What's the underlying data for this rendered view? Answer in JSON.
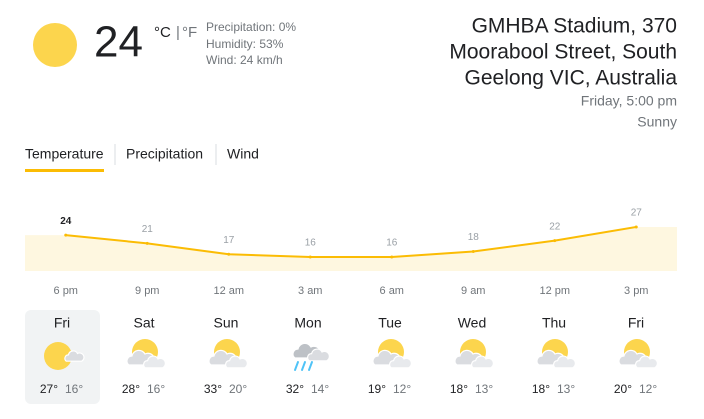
{
  "current": {
    "temperature": "24",
    "unit_c": "°C",
    "unit_sep": "|",
    "unit_f": "°F",
    "precipitation": "Precipitation: 0%",
    "humidity": "Humidity: 53%",
    "wind": "Wind: 24 km/h"
  },
  "location": {
    "lines": [
      "GMHBA Stadium, 370",
      "Moorabool Street, South",
      "Geelong VIC, Australia"
    ],
    "time": "Friday, 5:00 pm",
    "condition": "Sunny"
  },
  "tabs": [
    "Temperature",
    "Precipitation",
    "Wind"
  ],
  "chart_data": {
    "type": "area",
    "categories": [
      "6 pm",
      "9 pm",
      "12 am",
      "3 am",
      "6 am",
      "9 am",
      "12 pm",
      "3 pm"
    ],
    "values": [
      24,
      21,
      17,
      16,
      16,
      18,
      22,
      27
    ],
    "color": "#fbbc04",
    "fill": "#fef7e0"
  },
  "daily": [
    {
      "day": "Fri",
      "high": "27°",
      "low": "16°"
    },
    {
      "day": "Sat",
      "high": "28°",
      "low": "16°"
    },
    {
      "day": "Sun",
      "high": "33°",
      "low": "20°"
    },
    {
      "day": "Mon",
      "high": "32°",
      "low": "14°"
    },
    {
      "day": "Tue",
      "high": "19°",
      "low": "12°"
    },
    {
      "day": "Wed",
      "high": "18°",
      "low": "13°"
    },
    {
      "day": "Thu",
      "high": "18°",
      "low": "13°"
    },
    {
      "day": "Fri",
      "high": "20°",
      "low": "12°"
    }
  ]
}
